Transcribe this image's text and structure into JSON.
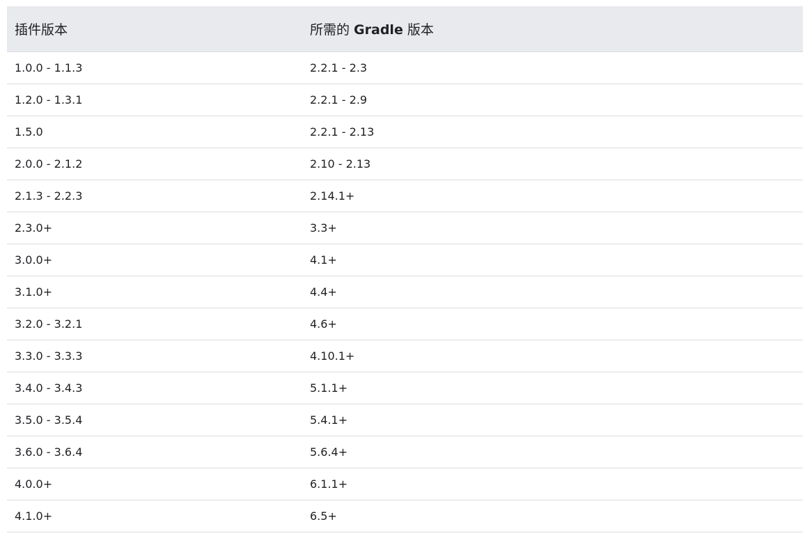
{
  "table": {
    "header": {
      "plugin": "插件版本",
      "gradle_pre": "所需的 ",
      "gradle_bold": "Gradle",
      "gradle_post": " 版本"
    },
    "rows": [
      {
        "plugin": "1.0.0 - 1.1.3",
        "gradle": "2.2.1 - 2.3"
      },
      {
        "plugin": "1.2.0 - 1.3.1",
        "gradle": "2.2.1 - 2.9"
      },
      {
        "plugin": "1.5.0",
        "gradle": "2.2.1 - 2.13"
      },
      {
        "plugin": "2.0.0 - 2.1.2",
        "gradle": "2.10 - 2.13"
      },
      {
        "plugin": "2.1.3 - 2.2.3",
        "gradle": "2.14.1+"
      },
      {
        "plugin": "2.3.0+",
        "gradle": "3.3+"
      },
      {
        "plugin": "3.0.0+",
        "gradle": "4.1+"
      },
      {
        "plugin": "3.1.0+",
        "gradle": "4.4+"
      },
      {
        "plugin": "3.2.0 - 3.2.1",
        "gradle": "4.6+"
      },
      {
        "plugin": "3.3.0 - 3.3.3",
        "gradle": "4.10.1+"
      },
      {
        "plugin": "3.4.0 - 3.4.3",
        "gradle": "5.1.1+"
      },
      {
        "plugin": "3.5.0 - 3.5.4",
        "gradle": "5.4.1+"
      },
      {
        "plugin": "3.6.0 - 3.6.4",
        "gradle": "5.6.4+"
      },
      {
        "plugin": "4.0.0+",
        "gradle": "6.1.1+"
      },
      {
        "plugin": "4.1.0+",
        "gradle": "6.5+"
      }
    ]
  }
}
